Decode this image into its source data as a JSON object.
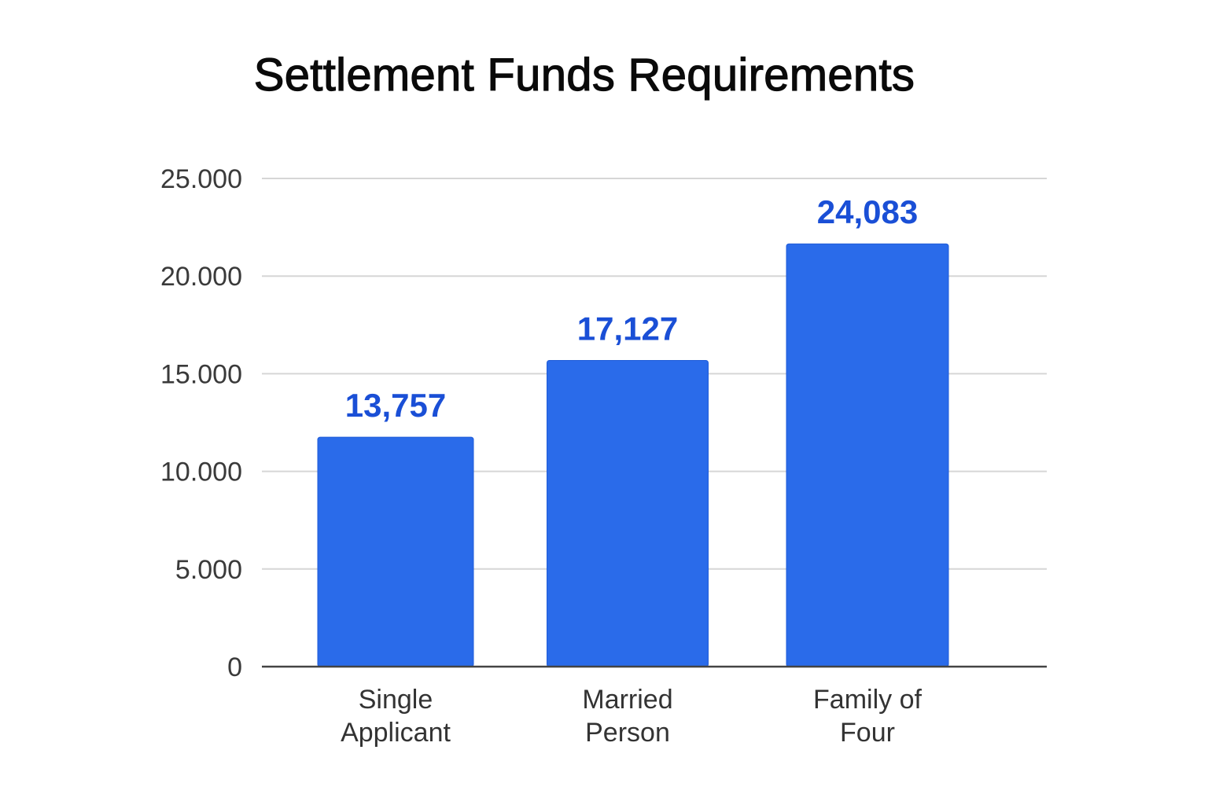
{
  "chart_data": {
    "type": "bar",
    "title": "Settlement Funds Requirements",
    "xlabel": "",
    "ylabel": "",
    "categories": [
      [
        "Single",
        "Applicant"
      ],
      [
        "Married",
        "Person"
      ],
      [
        "Family of",
        "Four"
      ]
    ],
    "values": [
      13757,
      17127,
      24083
    ],
    "value_labels": [
      "13,757",
      "17,127",
      "24,083"
    ],
    "ylim": [
      0,
      25000
    ],
    "y_ticks": [
      0,
      5000,
      10000,
      15000,
      20000,
      25000
    ],
    "y_tick_labels": [
      "0",
      "5.000",
      "10.000",
      "15.000",
      "20.000",
      "25.000"
    ],
    "grid": true,
    "legend": "none",
    "colors": {
      "bar": "#2a6bea",
      "bar_edge": "#1f5bd8",
      "data_label": "#1a4fd6",
      "grid": "#d6d6d6",
      "axis": "#444444"
    }
  }
}
